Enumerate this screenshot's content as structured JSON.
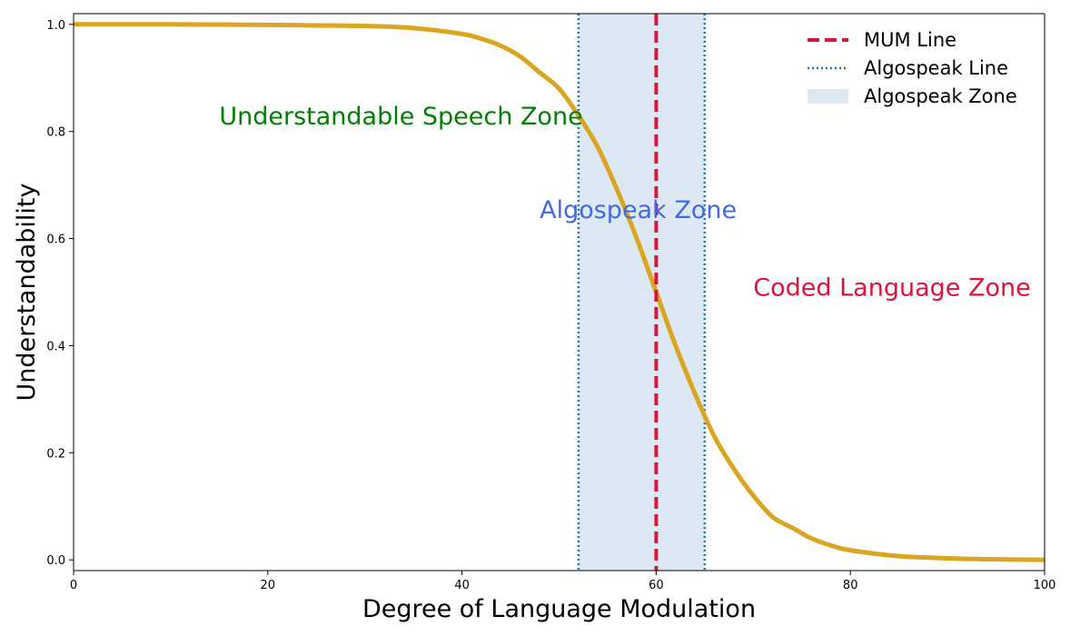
{
  "chart_data": {
    "type": "line",
    "xlabel": "Degree of Language Modulation",
    "ylabel": "Understandability",
    "xlim": [
      0,
      100
    ],
    "ylim": [
      -0.02,
      1.02
    ],
    "x_ticks": [
      0,
      20,
      40,
      60,
      80,
      100
    ],
    "y_ticks": [
      0.0,
      0.2,
      0.4,
      0.6,
      0.8,
      1.0
    ],
    "x_tick_labels": [
      "0",
      "20",
      "40",
      "60",
      "80",
      "100"
    ],
    "y_tick_labels": [
      "0.0",
      "0.2",
      "0.4",
      "0.6",
      "0.8",
      "1.0"
    ],
    "grid": false,
    "series": [
      {
        "name": "",
        "color": "#DAA520",
        "x": [
          0,
          10,
          20,
          25,
          30,
          35,
          40,
          42,
          44,
          46,
          48,
          50,
          52,
          54,
          56,
          58,
          60,
          62,
          64,
          66,
          68,
          70,
          72,
          74,
          76,
          78,
          80,
          85,
          90,
          95,
          100
        ],
        "y": [
          1.0,
          1.0,
          0.999,
          0.998,
          0.997,
          0.993,
          0.982,
          0.973,
          0.96,
          0.94,
          0.91,
          0.88,
          0.83,
          0.77,
          0.69,
          0.6,
          0.5,
          0.4,
          0.31,
          0.23,
          0.17,
          0.12,
          0.08,
          0.06,
          0.04,
          0.027,
          0.018,
          0.007,
          0.003,
          0.001,
          0.0
        ]
      }
    ],
    "mum_line": {
      "x": 60,
      "color": "#DC143C"
    },
    "algospeak_lines": {
      "x": [
        52,
        65
      ],
      "color": "#1F77B4"
    },
    "algospeak_zone": {
      "x": [
        52,
        65
      ],
      "color": "#DCE9F4"
    },
    "annotations": [
      {
        "text": "Understandable Speech Zone",
        "x": 15,
        "y": 0.83,
        "color": "#008000"
      },
      {
        "text": "Algospeak Zone",
        "x": 48,
        "y": 0.655,
        "color": "#4169E1"
      },
      {
        "text": "Coded Language Zone",
        "x": 70,
        "y": 0.51,
        "color": "#DC143C"
      }
    ],
    "legend": {
      "placement": "top-right",
      "entries": [
        {
          "label": "MUM Line",
          "style": "dashed",
          "color": "#DC143C"
        },
        {
          "label": "Algospeak Line",
          "style": "dotted",
          "color": "#1F77B4"
        },
        {
          "label": "Algospeak Zone",
          "style": "patch",
          "color": "#DCE9F4"
        }
      ]
    }
  }
}
